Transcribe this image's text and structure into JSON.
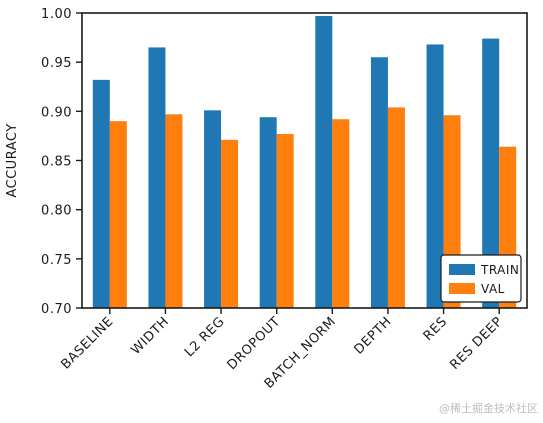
{
  "chart_data": {
    "type": "bar",
    "title": "",
    "xlabel": "",
    "ylabel": "ACCURACY",
    "ylim": [
      0.7,
      1.0
    ],
    "yticks": [
      0.7,
      0.75,
      0.8,
      0.85,
      0.9,
      0.95,
      1.0
    ],
    "ytick_labels": [
      "0.70",
      "0.75",
      "0.80",
      "0.85",
      "0.90",
      "0.95",
      "1.00"
    ],
    "categories": [
      "BASELINE",
      "WIDTH",
      "L2 REG",
      "DROPOUT",
      "BATCH_NORM",
      "DEPTH",
      "RES",
      "RES DEEP"
    ],
    "series": [
      {
        "name": "TRAIN",
        "color": "#1f77b4",
        "values": [
          0.932,
          0.965,
          0.901,
          0.894,
          0.997,
          0.955,
          0.968,
          0.974
        ]
      },
      {
        "name": "VAL",
        "color": "#ff7f0e",
        "values": [
          0.89,
          0.897,
          0.871,
          0.877,
          0.892,
          0.904,
          0.896,
          0.864
        ]
      }
    ],
    "legend": {
      "placement": "lower-right",
      "entries": [
        "TRAIN",
        "VAL"
      ]
    },
    "grid": false
  },
  "watermark": "@稀土掘金技术社区"
}
